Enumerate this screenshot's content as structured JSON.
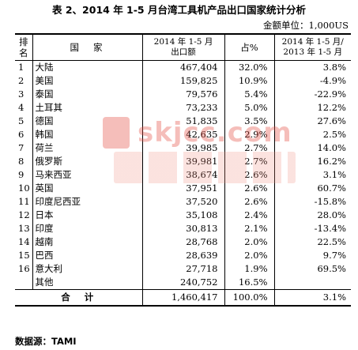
{
  "title": "表 2、2014 年 1-5 月台湾工具机产品出口国家统计分析",
  "unit": "金额单位：1,000US",
  "headers": {
    "rank": "排名",
    "country": "国家",
    "export_line1": "2014 年 1-5 月",
    "export_line2": "出口额",
    "share": "占%",
    "growth_line1": "2014 年 1-5 月/",
    "growth_line2": "2013 年 1-5 月"
  },
  "rows": [
    {
      "rank": "1",
      "country": "大陆",
      "export": "467,404",
      "share": "32.0%",
      "growth": "3.8%"
    },
    {
      "rank": "2",
      "country": "美国",
      "export": "159,825",
      "share": "10.9%",
      "growth": "-4.9%"
    },
    {
      "rank": "3",
      "country": "泰国",
      "export": "79,576",
      "share": "5.4%",
      "growth": "-22.9%"
    },
    {
      "rank": "4",
      "country": "土耳其",
      "export": "73,233",
      "share": "5.0%",
      "growth": "12.2%"
    },
    {
      "rank": "5",
      "country": "德国",
      "export": "51,835",
      "share": "3.5%",
      "growth": "27.6%"
    },
    {
      "rank": "6",
      "country": "韩国",
      "export": "42,635",
      "share": "2.9%",
      "growth": "2.5%"
    },
    {
      "rank": "7",
      "country": "荷兰",
      "export": "39,985",
      "share": "2.7%",
      "growth": "14.0%"
    },
    {
      "rank": "8",
      "country": "俄罗斯",
      "export": "39,981",
      "share": "2.7%",
      "growth": "16.2%"
    },
    {
      "rank": "9",
      "country": "马来西亚",
      "export": "38,674",
      "share": "2.6%",
      "growth": "3.1%"
    },
    {
      "rank": "10",
      "country": "英国",
      "export": "37,951",
      "share": "2.6%",
      "growth": "60.7%"
    },
    {
      "rank": "11",
      "country": "印度尼西亚",
      "export": "37,520",
      "share": "2.6%",
      "growth": "-15.8%"
    },
    {
      "rank": "12",
      "country": "日本",
      "export": "35,108",
      "share": "2.4%",
      "growth": "28.0%"
    },
    {
      "rank": "13",
      "country": "印度",
      "export": "30,813",
      "share": "2.1%",
      "growth": "-13.4%"
    },
    {
      "rank": "14",
      "country": "越南",
      "export": "28,768",
      "share": "2.0%",
      "growth": "22.5%"
    },
    {
      "rank": "15",
      "country": "巴西",
      "export": "28,639",
      "share": "2.0%",
      "growth": "9.7%"
    },
    {
      "rank": "16",
      "country": "意大利",
      "export": "27,718",
      "share": "1.9%",
      "growth": "69.5%"
    },
    {
      "rank": "",
      "country": "其他",
      "export": "240,752",
      "share": "16.5%",
      "growth": ""
    }
  ],
  "total": {
    "label": "合计",
    "export": "1,460,417",
    "share": "100.0%",
    "growth": "3.1%"
  },
  "source": "数据源：TAMI",
  "watermark": {
    "text": "skjcc.com",
    "color": "#e5473b"
  }
}
